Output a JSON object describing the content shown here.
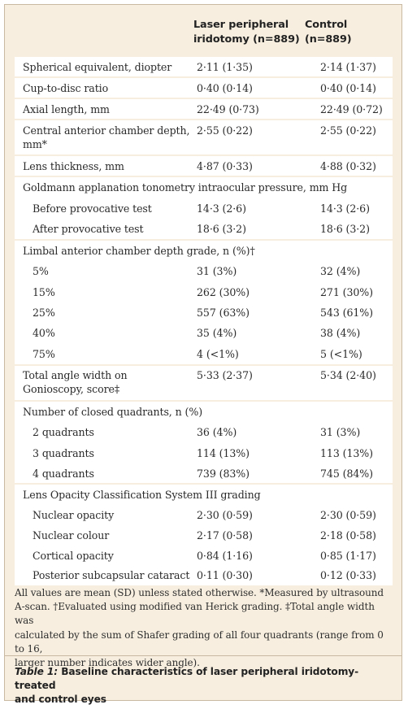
{
  "header": {
    "col1_line1": "Laser peripheral",
    "col1_line2": "iridotomy (n=889)",
    "col2_line1": "Control",
    "col2_line2": "(n=889)"
  },
  "rows": {
    "r0": {
      "label": "Spherical equivalent, diopter",
      "v1": "2·11 (1·35)",
      "v2": "2·14 (1·37)"
    },
    "r1": {
      "label": "Cup-to-disc ratio",
      "v1": "0·40 (0·14)",
      "v2": "0·40 (0·14)"
    },
    "r2": {
      "label": "Axial length, mm",
      "v1": "22·49 (0·73)",
      "v2": "22·49 (0·72)"
    },
    "r3": {
      "label1": "Central anterior chamber depth,",
      "label2": "mm*",
      "v1": "2·55 (0·22)",
      "v2": "2·55 (0·22)"
    },
    "r4": {
      "label": "Lens thickness, mm",
      "v1": "4·87 (0·33)",
      "v2": "4·88 (0·32)"
    },
    "g1": {
      "label": "Goldmann applanation tonometry intraocular pressure, mm Hg"
    },
    "r5": {
      "label": "Before provocative test",
      "v1": "14·3 (2·6)",
      "v2": "14·3 (2·6)"
    },
    "r6": {
      "label": "After provocative test",
      "v1": "18·6 (3·2)",
      "v2": "18·6 (3·2)"
    },
    "g2": {
      "label": "Limbal anterior chamber depth grade, n (%)†"
    },
    "r7": {
      "label": "5%",
      "v1": "31 (3%)",
      "v2": "32 (4%)"
    },
    "r8": {
      "label": "15%",
      "v1": "262 (30%)",
      "v2": "271 (30%)"
    },
    "r9": {
      "label": "25%",
      "v1": "557 (63%)",
      "v2": "543 (61%)"
    },
    "r10": {
      "label": "40%",
      "v1": "35 (4%)",
      "v2": "38 (4%)"
    },
    "r11": {
      "label": "75%",
      "v1": "4 (<1%)",
      "v2": "5 (<1%)"
    },
    "r12": {
      "label1": "Total angle width on",
      "label2": "Gonioscopy, score‡",
      "v1": "5·33 (2·37)",
      "v2": "5·34 (2·40)"
    },
    "g3": {
      "label": "Number of closed quadrants, n (%)"
    },
    "r13": {
      "label": "2 quadrants",
      "v1": "36 (4%)",
      "v2": "31 (3%)"
    },
    "r14": {
      "label": "3 quadrants",
      "v1": "114 (13%)",
      "v2": "113 (13%)"
    },
    "r15": {
      "label": "4 quadrants",
      "v1": "739 (83%)",
      "v2": "745 (84%)"
    },
    "g4": {
      "label": "Lens Opacity Classification System III grading"
    },
    "r16": {
      "label": "Nuclear opacity",
      "v1": "2·30 (0·59)",
      "v2": "2·30 (0·59)"
    },
    "r17": {
      "label": "Nuclear colour",
      "v1": "2·17 (0·58)",
      "v2": "2·18 (0·58)"
    },
    "r18": {
      "label": "Cortical opacity",
      "v1": "0·84 (1·16)",
      "v2": "0·85 (1·17)"
    },
    "r19": {
      "label": "Posterior subcapsular cataract",
      "v1": "0·11 (0·30)",
      "v2": "0·12 (0·33)"
    }
  },
  "footnote": {
    "line1": "All values are mean (SD) unless stated otherwise. *Measured by ultrasound",
    "line2": "A-scan. †Evaluated using modified van Herick grading. ‡Total angle width was",
    "line3": "calculated by the sum of Shafer grading of all four quadrants (range from 0 to 16,",
    "line4": "larger number indicates wider angle)."
  },
  "caption": {
    "table_label": "Table 1:",
    "title_line1": "Baseline characteristics of laser peripheral iridotomy-treated",
    "title_line2": "and control eyes"
  },
  "colors": {
    "panel_background": "#f7eedf",
    "row_background": "#ffffff",
    "border": "#c9b9a2"
  }
}
